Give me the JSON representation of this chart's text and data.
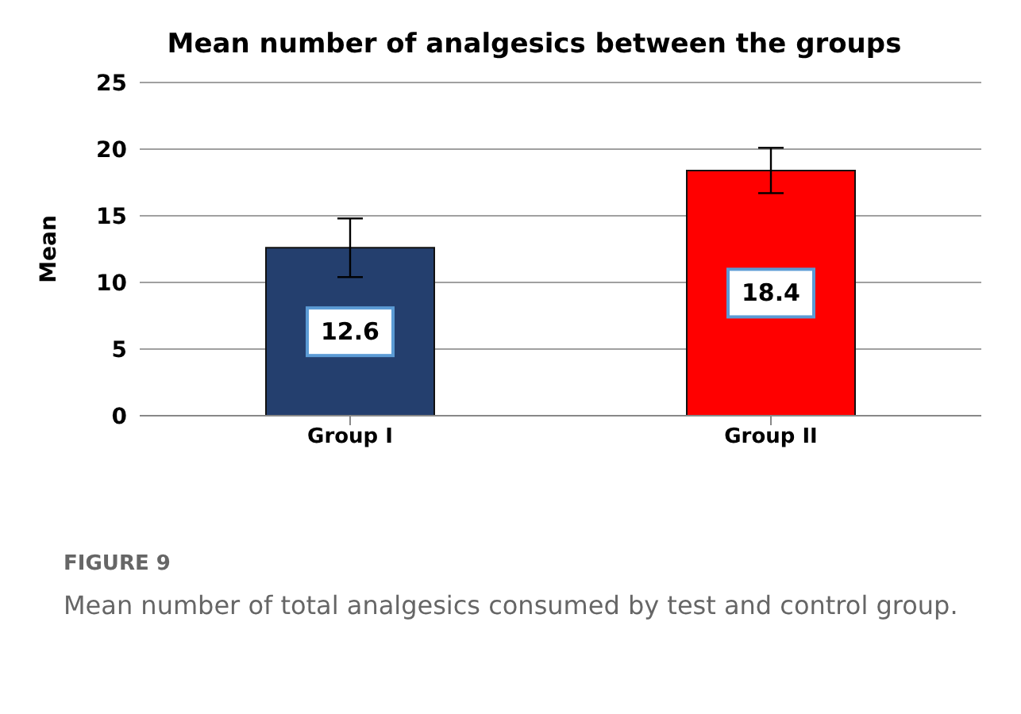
{
  "chart_data": {
    "type": "bar",
    "title": "Mean number of analgesics between the groups",
    "ylabel": "Mean",
    "categories": [
      "Group I",
      "Group II"
    ],
    "values": [
      12.6,
      18.4
    ],
    "colors": [
      "#243f6e",
      "#ff0000"
    ],
    "errors": [
      2.2,
      1.7
    ],
    "data_labels": true,
    "ylim": [
      0,
      25
    ],
    "yticks": [
      0,
      5,
      10,
      15,
      20,
      25
    ],
    "grid": "y",
    "legend": false,
    "annotations": [
      "FIGURE 9",
      "Mean number of total analgesics consumed by test and control group."
    ]
  }
}
